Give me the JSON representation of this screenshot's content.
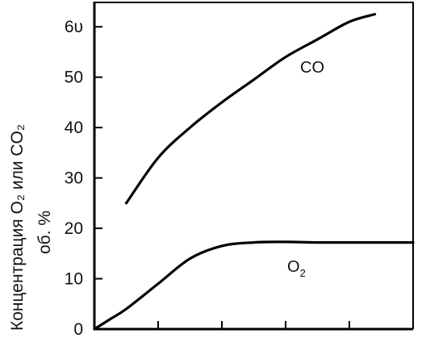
{
  "chart_data": {
    "type": "line",
    "title": "",
    "xlabel": "",
    "ylabel": [
      "Концентрация O₂ или CO₂",
      "об. %"
    ],
    "ylim": [
      0,
      65
    ],
    "xlim": [
      0,
      5
    ],
    "x_ticks": [
      1,
      2,
      3,
      4
    ],
    "y_ticks": [
      {
        "value": 0,
        "label": "0"
      },
      {
        "value": 10,
        "label": "10"
      },
      {
        "value": 20,
        "label": "20"
      },
      {
        "value": 30,
        "label": "30"
      },
      {
        "value": 40,
        "label": "40"
      },
      {
        "value": 50,
        "label": "50"
      },
      {
        "value": 60,
        "label": "6υ"
      }
    ],
    "grid": false,
    "series": [
      {
        "name": "CO",
        "label_parts": [
          "CO"
        ],
        "x": [
          0.5,
          1.0,
          1.5,
          2.0,
          2.5,
          3.0,
          3.5,
          4.0,
          4.4
        ],
        "y": [
          25,
          34,
          40,
          45,
          49.5,
          54,
          57.5,
          61,
          62.5
        ]
      },
      {
        "name": "O2",
        "label_parts": [
          "O",
          "2"
        ],
        "x": [
          0,
          0.25,
          0.5,
          1.0,
          1.5,
          2.0,
          2.5,
          3.0,
          3.5,
          4.0,
          4.5,
          5.0
        ],
        "y": [
          0,
          2,
          4,
          9,
          14,
          16.5,
          17.2,
          17.3,
          17.2,
          17.2,
          17.2,
          17.2
        ]
      }
    ]
  }
}
